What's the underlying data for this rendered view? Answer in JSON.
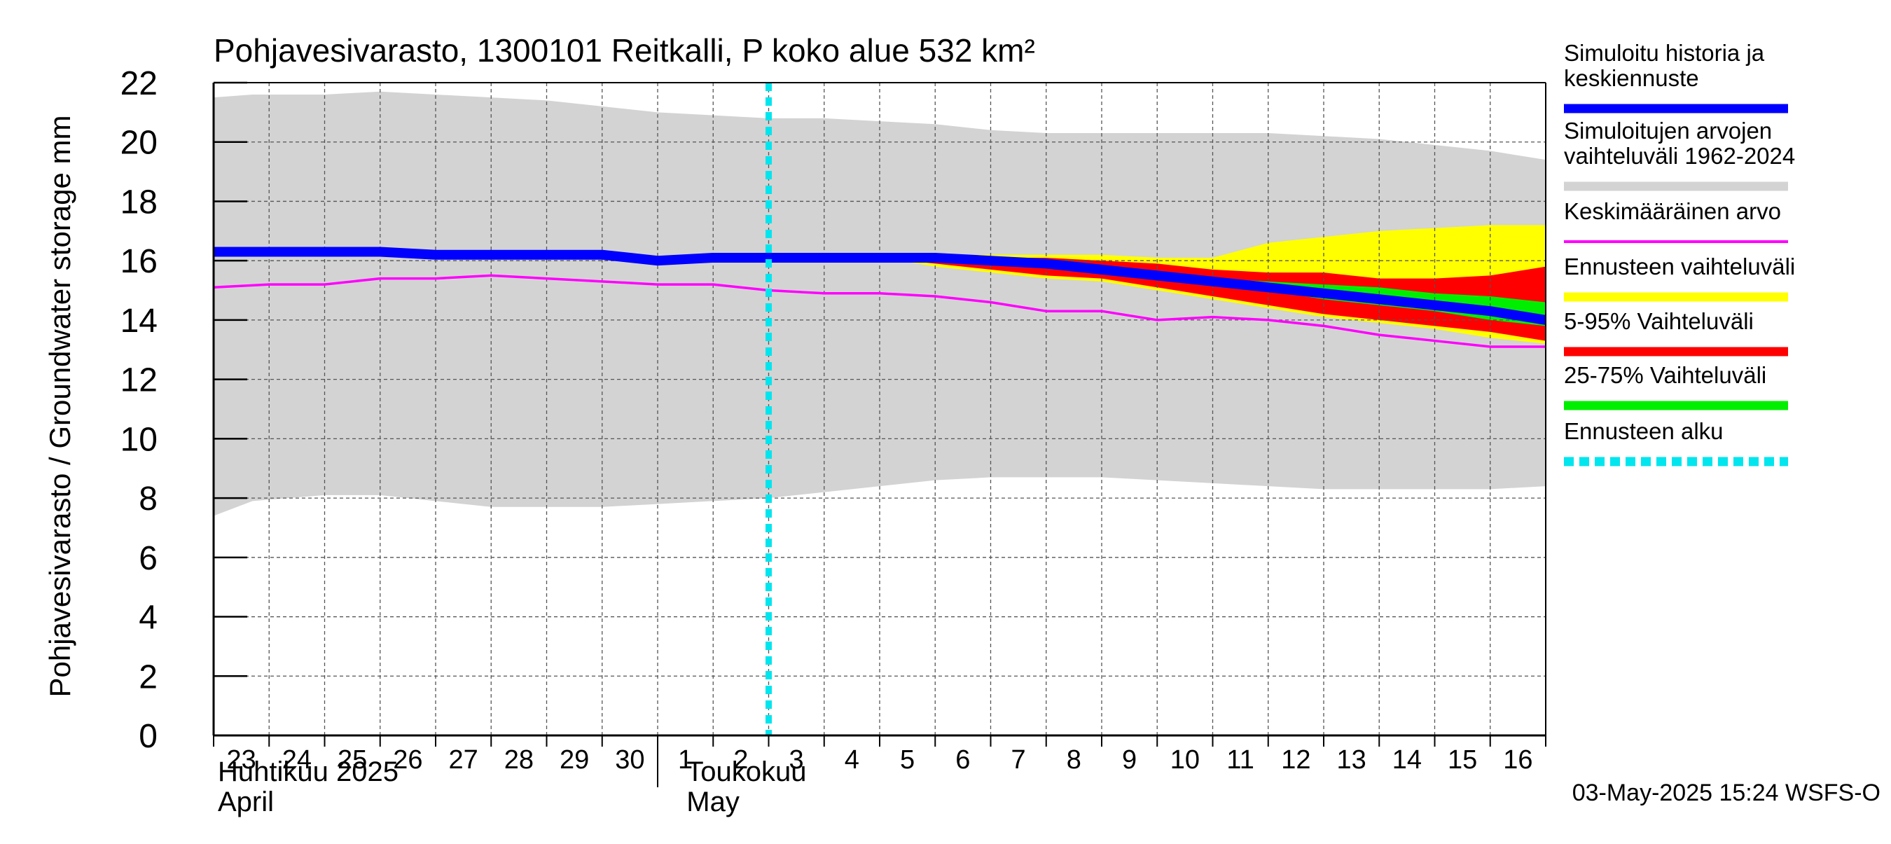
{
  "chart_data": {
    "type": "line",
    "title": "Pohjavesivarasto, 1300101 Reitkalli, P koko alue 532 km²",
    "ylabel": "Pohjavesivarasto / Groundwater storage   mm",
    "ylim": [
      0,
      22
    ],
    "yticks": [
      0,
      2,
      4,
      6,
      8,
      10,
      12,
      14,
      16,
      18,
      20,
      22
    ],
    "grid": true,
    "x": [
      0,
      1,
      2,
      3,
      4,
      5,
      6,
      7,
      8,
      9,
      10,
      11,
      12,
      13,
      14,
      15,
      16,
      17,
      18,
      19,
      20,
      21,
      22,
      23,
      24
    ],
    "x_tick_labels": [
      "23",
      "24",
      "25",
      "26",
      "27",
      "28",
      "29",
      "30",
      "1",
      "2",
      "3",
      "4",
      "5",
      "6",
      "7",
      "8",
      "9",
      "10",
      "11",
      "12",
      "13",
      "14",
      "15",
      "16"
    ],
    "month_labels": [
      {
        "fi": "Huhtikuu  2025",
        "en": "April"
      },
      {
        "fi": "Toukokuu",
        "en": "May"
      }
    ],
    "forecast_start_day": 10,
    "series": [
      {
        "name": "Simuloitujen arvojen vaihteluväli 1962-2024",
        "kind": "band",
        "color": "#d3d3d3",
        "x": [
          0,
          0.7,
          2,
          3,
          4,
          5,
          6,
          7,
          8,
          9,
          10,
          11,
          12,
          13,
          14,
          15,
          16,
          17,
          18,
          19,
          20,
          21,
          22,
          23,
          24
        ],
        "upper": [
          21.5,
          21.6,
          21.6,
          21.7,
          21.6,
          21.5,
          21.4,
          21.2,
          21.0,
          20.9,
          20.8,
          20.8,
          20.7,
          20.6,
          20.4,
          20.3,
          20.3,
          20.3,
          20.3,
          20.3,
          20.2,
          20.1,
          19.9,
          19.7,
          19.4
        ],
        "lower": [
          7.4,
          7.9,
          8.1,
          8.1,
          7.9,
          7.7,
          7.7,
          7.7,
          7.8,
          7.9,
          8.0,
          8.2,
          8.4,
          8.6,
          8.7,
          8.7,
          8.7,
          8.6,
          8.5,
          8.4,
          8.3,
          8.3,
          8.3,
          8.3,
          8.4
        ]
      },
      {
        "name": "Ennusteen vaihteluväli",
        "kind": "band",
        "color": "#ffff00",
        "x": [
          12,
          13,
          14,
          15,
          16,
          17,
          18,
          19,
          20,
          21,
          22,
          23,
          24
        ],
        "upper": [
          16.1,
          16.2,
          16.2,
          16.2,
          16.2,
          16.1,
          16.1,
          16.6,
          16.8,
          17.0,
          17.1,
          17.2,
          17.2
        ],
        "lower": [
          16.1,
          15.8,
          15.6,
          15.4,
          15.3,
          15.0,
          14.7,
          14.4,
          14.1,
          13.9,
          13.7,
          13.4,
          13.2
        ]
      },
      {
        "name": "5-95% Vaihteluväli",
        "kind": "band",
        "color": "#ff0000",
        "x": [
          12,
          13,
          14,
          15,
          16,
          17,
          18,
          19,
          20,
          21,
          22,
          23,
          24
        ],
        "upper": [
          16.1,
          16.2,
          16.1,
          16.1,
          16.0,
          15.9,
          15.7,
          15.6,
          15.6,
          15.4,
          15.4,
          15.5,
          15.8
        ],
        "lower": [
          16.1,
          15.9,
          15.7,
          15.5,
          15.4,
          15.1,
          14.8,
          14.5,
          14.2,
          14.0,
          13.8,
          13.6,
          13.3
        ]
      },
      {
        "name": "25-75% Vaihteluväli",
        "kind": "band",
        "color": "#00ee00",
        "x": [
          12,
          13,
          14,
          15,
          16,
          17,
          18,
          19,
          20,
          21,
          22,
          23,
          24
        ],
        "upper": [
          16.1,
          16.1,
          16.0,
          15.9,
          15.8,
          15.6,
          15.4,
          15.3,
          15.2,
          15.1,
          14.9,
          14.8,
          14.6
        ],
        "lower": [
          16.1,
          16.0,
          15.9,
          15.8,
          15.6,
          15.4,
          15.2,
          15.0,
          14.7,
          14.5,
          14.3,
          14.0,
          13.8
        ]
      },
      {
        "name": "Keskimääräinen arvo",
        "kind": "line",
        "color": "#ff00ff",
        "x": [
          0,
          1,
          2,
          3,
          4,
          5,
          6,
          7,
          8,
          9,
          10,
          11,
          12,
          13,
          14,
          15,
          16,
          17,
          18,
          19,
          20,
          21,
          22,
          23,
          24
        ],
        "values": [
          15.1,
          15.2,
          15.2,
          15.4,
          15.4,
          15.5,
          15.4,
          15.3,
          15.2,
          15.2,
          15.0,
          14.9,
          14.9,
          14.8,
          14.6,
          14.3,
          14.3,
          14.0,
          14.1,
          14.0,
          13.8,
          13.5,
          13.3,
          13.1,
          13.1
        ]
      },
      {
        "name": "Simuloitu historia ja keskiennuste",
        "kind": "line",
        "color": "#0000ff",
        "x": [
          0,
          1,
          2,
          3,
          4,
          5,
          6,
          7,
          8,
          9,
          10,
          11,
          12,
          13,
          14,
          15,
          16,
          17,
          18,
          19,
          20,
          21,
          22,
          23,
          24
        ],
        "values": [
          16.3,
          16.3,
          16.3,
          16.3,
          16.2,
          16.2,
          16.2,
          16.2,
          16.0,
          16.1,
          16.1,
          16.1,
          16.1,
          16.1,
          16.0,
          15.9,
          15.7,
          15.5,
          15.3,
          15.1,
          14.9,
          14.7,
          14.5,
          14.3,
          14.0
        ]
      },
      {
        "name": "Ennusteen alku",
        "kind": "vline",
        "color": "#00e5ee",
        "x": 10
      }
    ],
    "legend": {
      "placement": "right",
      "entries": [
        {
          "label": "Simuloitu historia ja keskiennuste",
          "color": "#0000ff",
          "style": "thick"
        },
        {
          "label": "Simuloitujen arvojen vaihteluväli 1962-2024",
          "color": "#d3d3d3",
          "style": "thick"
        },
        {
          "label": "Keskimääräinen arvo",
          "color": "#ff00ff",
          "style": "thin"
        },
        {
          "label": "Ennusteen vaihteluväli",
          "color": "#ffff00",
          "style": "thick"
        },
        {
          "label": "5-95% Vaihteluväli",
          "color": "#ff0000",
          "style": "thick"
        },
        {
          "label": "25-75% Vaihteluväli",
          "color": "#00ee00",
          "style": "thick"
        },
        {
          "label": "Ennusteen alku",
          "color": "#00e5ee",
          "style": "dashed"
        }
      ]
    },
    "footer": "03-May-2025 15:24 WSFS-O"
  }
}
